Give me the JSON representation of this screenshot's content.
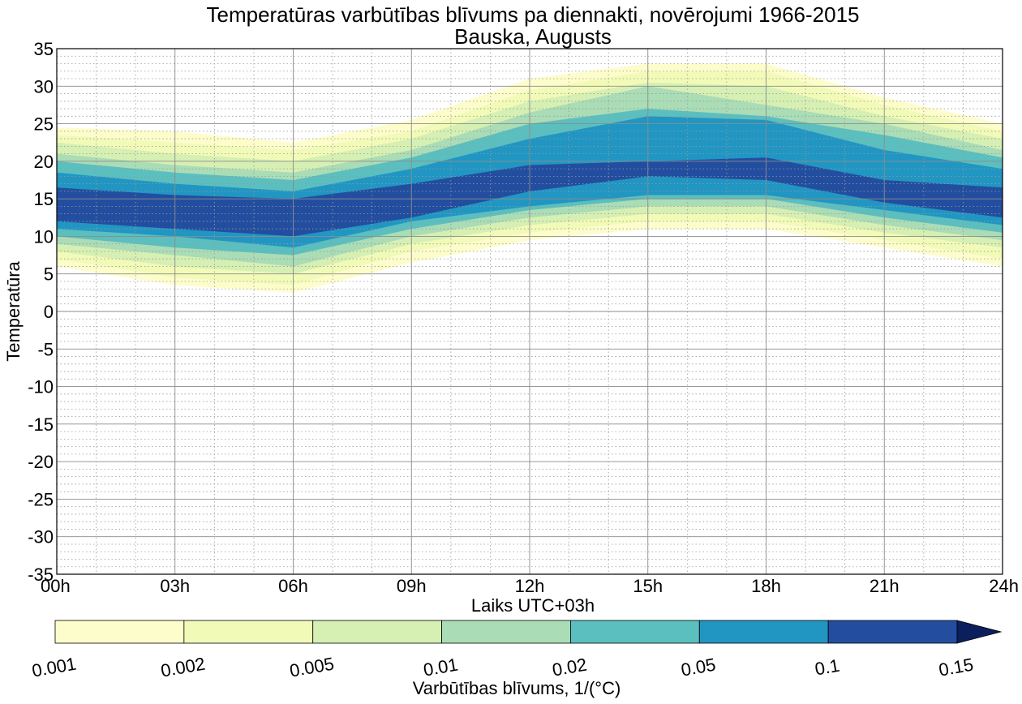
{
  "chart_data": {
    "type": "contourf",
    "title": "Temperatūras varbūtības blīvums pa diennakti, novērojumi 1966-2015",
    "subtitle": "Bauska, Augusts",
    "xlabel": "Laiks UTC+03h",
    "ylabel": "Temperatūra",
    "x_ticks": [
      "00h",
      "03h",
      "06h",
      "09h",
      "12h",
      "15h",
      "18h",
      "21h",
      "24h"
    ],
    "xlim": [
      0,
      24
    ],
    "y_ticks": [
      35,
      30,
      25,
      20,
      15,
      10,
      5,
      0,
      -5,
      -10,
      -15,
      -20,
      -25,
      -30,
      -35
    ],
    "y_tick_labels": [
      "35",
      "30",
      "25",
      "20",
      "15",
      "10",
      "5",
      "0",
      "-5",
      "-10",
      "-15",
      "-20",
      "-25",
      "-30",
      "-35"
    ],
    "ylim": [
      -35,
      35
    ],
    "grid": true,
    "levels": [
      0.001,
      0.002,
      0.005,
      0.01,
      0.02,
      0.05,
      0.1,
      0.15
    ],
    "level_labels": [
      "0.001",
      "0.002",
      "0.005",
      "0.01",
      "0.02",
      "0.05",
      "0.1",
      "0.15"
    ],
    "level_colors": [
      "#fdfdcc",
      "#f2fab8",
      "#d6efb3",
      "#aadcb6",
      "#5bbfbf",
      "#2196c2",
      "#234ea0",
      "#0b1f5c"
    ],
    "colorbar_label": "Varbūtības blīvums, 1/(°C)",
    "bands": [
      {
        "level": "0.001",
        "x": [
          0,
          3,
          6,
          9,
          12,
          15,
          18,
          21,
          24
        ],
        "low": [
          6,
          3.5,
          2.5,
          6.5,
          9.5,
          11,
          11,
          8.5,
          6
        ],
        "high": [
          24.5,
          24,
          22.5,
          25.5,
          31,
          33,
          33,
          28.5,
          25
        ]
      },
      {
        "level": "0.002",
        "x": [
          0,
          3,
          6,
          9,
          12,
          15,
          18,
          21,
          24
        ],
        "low": [
          7,
          4.5,
          3.5,
          8,
          10.5,
          12,
          12,
          9.5,
          7
        ],
        "high": [
          23.5,
          22.5,
          21.5,
          24,
          29.5,
          32,
          32,
          27.5,
          24
        ]
      },
      {
        "level": "0.005",
        "x": [
          0,
          3,
          6,
          9,
          12,
          15,
          18,
          21,
          24
        ],
        "low": [
          8,
          6,
          5,
          9,
          11.5,
          13,
          13,
          10.5,
          8.5
        ],
        "high": [
          22.5,
          21,
          20,
          23,
          28,
          30.5,
          30,
          26,
          23
        ]
      },
      {
        "level": "0.01",
        "x": [
          0,
          3,
          6,
          9,
          12,
          15,
          18,
          21,
          24
        ],
        "low": [
          9,
          7.5,
          6,
          10,
          12.5,
          14,
          14,
          11.5,
          9.5
        ],
        "high": [
          21,
          19.5,
          18.5,
          21.5,
          26.5,
          30,
          27.5,
          25,
          21.5
        ]
      },
      {
        "level": "0.02",
        "x": [
          0,
          3,
          6,
          9,
          12,
          15,
          18,
          21,
          24
        ],
        "low": [
          10,
          8.5,
          7.5,
          11,
          13.5,
          15,
          15,
          12.5,
          10.5
        ],
        "high": [
          20,
          18.5,
          17.5,
          20.5,
          25,
          27,
          26,
          23.5,
          20.5
        ]
      },
      {
        "level": "0.05",
        "x": [
          0,
          3,
          6,
          9,
          12,
          15,
          18,
          21,
          24
        ],
        "low": [
          11,
          10,
          8.5,
          12,
          14,
          15.5,
          15.5,
          13.5,
          11.5
        ],
        "high": [
          18.5,
          17,
          16,
          19,
          23,
          26,
          25.5,
          21.5,
          19
        ]
      },
      {
        "level": "0.1",
        "x": [
          0,
          3,
          6,
          9,
          12,
          15,
          18,
          21,
          24
        ],
        "low": [
          12,
          11,
          10,
          12.5,
          16,
          18,
          17.5,
          14.5,
          12.5
        ],
        "high": [
          16.5,
          15.5,
          15,
          17,
          19.5,
          20,
          20.5,
          17.5,
          16.5
        ]
      }
    ]
  }
}
